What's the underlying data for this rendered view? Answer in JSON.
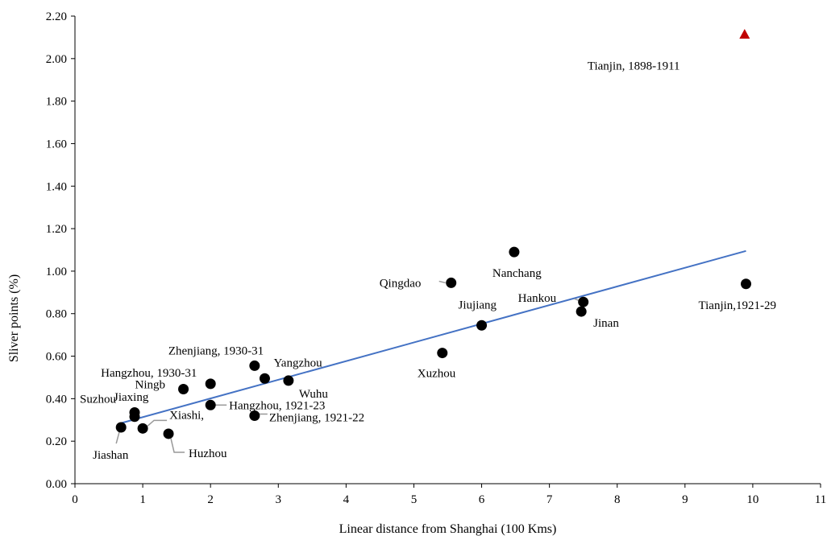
{
  "chart_data": {
    "type": "scatter",
    "xlabel": "Linear  distance from Shanghai (100 Kms)",
    "ylabel": "Sliver points (%)",
    "xlim": [
      0,
      11
    ],
    "ylim": [
      0,
      2.2
    ],
    "x_ticks": [
      "0",
      "1",
      "2",
      "3",
      "4",
      "5",
      "6",
      "7",
      "8",
      "9",
      "10",
      "11"
    ],
    "y_ticks": [
      "0.00",
      "0.20",
      "0.40",
      "0.60",
      "0.80",
      "1.00",
      "1.20",
      "1.40",
      "1.60",
      "1.80",
      "2.00",
      "2.20"
    ],
    "grid": false,
    "series": [
      {
        "marker": "circle",
        "color": "#000000",
        "points": [
          {
            "label": "Jiashan",
            "x": 0.68,
            "y": 0.265
          },
          {
            "label": "Suzhou",
            "x": 0.88,
            "y": 0.335
          },
          {
            "label": "Jiaxing",
            "x": 0.88,
            "y": 0.315
          },
          {
            "label": "Xiashi,",
            "x": 1.0,
            "y": 0.26
          },
          {
            "label": "Huzhou",
            "x": 1.38,
            "y": 0.235
          },
          {
            "label": "Ningb",
            "x": 1.6,
            "y": 0.445
          },
          {
            "label": "Hangzhou, 1930-31",
            "x": 2.0,
            "y": 0.47
          },
          {
            "label": "Hangzhou, 1921-23",
            "x": 2.0,
            "y": 0.37
          },
          {
            "label": "Zhenjiang,  1930-31",
            "x": 2.65,
            "y": 0.555
          },
          {
            "label": "Zhenjiang,  1921-22",
            "x": 2.65,
            "y": 0.32
          },
          {
            "label": "Yangzhou",
            "x": 2.8,
            "y": 0.495
          },
          {
            "label": "Wuhu",
            "x": 3.15,
            "y": 0.485
          },
          {
            "label": "Xuzhou",
            "x": 5.42,
            "y": 0.615
          },
          {
            "label": "Qingdao",
            "x": 5.55,
            "y": 0.945
          },
          {
            "label": "Jiujiang",
            "x": 6.0,
            "y": 0.745
          },
          {
            "label": "Nanchang",
            "x": 6.48,
            "y": 1.09
          },
          {
            "label": "Hankou",
            "x": 7.5,
            "y": 0.855
          },
          {
            "label": "Jinan",
            "x": 7.47,
            "y": 0.81
          },
          {
            "label": "Tianjin,1921-29",
            "x": 9.9,
            "y": 0.94
          }
        ]
      },
      {
        "marker": "triangle",
        "color": "#c00000",
        "points": [
          {
            "label": "Tianjin,  1898-1911",
            "x": 9.88,
            "y": 2.115
          }
        ]
      }
    ],
    "trendline": {
      "color": "#4472c4",
      "from": {
        "x": 0.68,
        "y": 0.285
      },
      "to": {
        "x": 9.9,
        "y": 1.095
      }
    }
  }
}
